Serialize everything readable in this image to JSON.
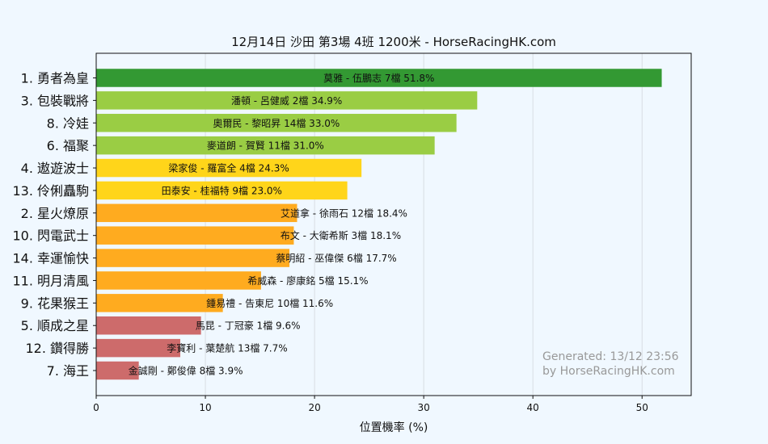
{
  "chart_data": {
    "type": "bar",
    "orientation": "horizontal",
    "title": "12月14日  沙田  第3場  4班  1200米 - HorseRacingHK.com",
    "xlabel": "位置機率 (%)",
    "ylabel": "",
    "xlim": [
      0,
      54.5
    ],
    "xticks": [
      0,
      10,
      20,
      30,
      40,
      50
    ],
    "grid": "vertical",
    "bars": [
      {
        "category": "1. 勇者為皇",
        "value": 51.8,
        "label": "莫雅 - 伍鵬志 7檔  51.8%",
        "color": "#339933"
      },
      {
        "category": "3. 包裝戰將",
        "value": 34.9,
        "label": "潘頓 - 呂健威 2檔  34.9%",
        "color": "#9acd44"
      },
      {
        "category": "8. 冷娃",
        "value": 33.0,
        "label": "奧爾民 - 黎昭昇 14檔  33.0%",
        "color": "#9acd44"
      },
      {
        "category": "6. 福聚",
        "value": 31.0,
        "label": "麥道朗 - 賀賢 11檔  31.0%",
        "color": "#9acd44"
      },
      {
        "category": "4. 遨遊波士",
        "value": 24.3,
        "label": "梁家俊 - 羅富全 4檔  24.3%",
        "color": "#ffd51a"
      },
      {
        "category": "13. 伶俐矗駒",
        "value": 23.0,
        "label": "田泰安 - 桂福特 9檔  23.0%",
        "color": "#ffd51a"
      },
      {
        "category": "2. 星火燎原",
        "value": 18.4,
        "label": "艾道拿 - 徐雨石 12檔  18.4%",
        "color": "#ffab1f"
      },
      {
        "category": "10. 閃電武士",
        "value": 18.1,
        "label": "布文 - 大衛希斯 3檔  18.1%",
        "color": "#ffab1f"
      },
      {
        "category": "14. 幸運愉快",
        "value": 17.7,
        "label": "蔡明紹 - 巫偉傑 6檔  17.7%",
        "color": "#ffab1f"
      },
      {
        "category": "11. 明月清風",
        "value": 15.1,
        "label": "希威森 - 廖康銘 5檔  15.1%",
        "color": "#ffab1f"
      },
      {
        "category": "9. 花果猴王",
        "value": 11.6,
        "label": "鍾易禮 - 告東尼 10檔  11.6%",
        "color": "#ffab1f"
      },
      {
        "category": "5. 順成之星",
        "value": 9.6,
        "label": "馬昆 - 丁冠豪 1檔  9.6%",
        "color": "#cd6b6b"
      },
      {
        "category": "12. 鑽得勝",
        "value": 7.7,
        "label": "李寶利 - 葉楚航 13檔  7.7%",
        "color": "#cd6b6b"
      },
      {
        "category": "7. 海王",
        "value": 3.9,
        "label": "金誠剛 - 鄭俊偉 8檔  3.9%",
        "color": "#cd6b6b"
      }
    ],
    "watermark": [
      "Generated: 13/12 23:56",
      "by HorseRacingHK.com"
    ]
  }
}
